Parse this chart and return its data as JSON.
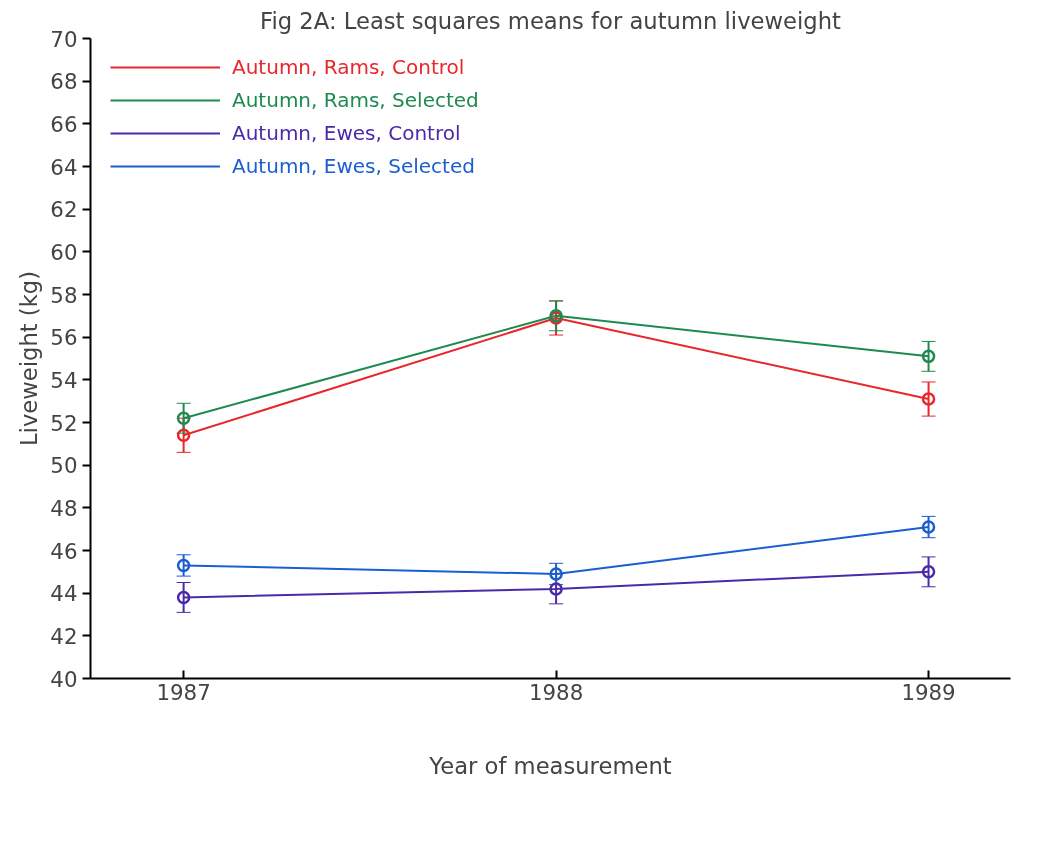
{
  "chart_data": {
    "type": "line",
    "title": "Fig 2A: Least squares means for autumn liveweight",
    "xlabel": "Year of measurement",
    "ylabel": "Liveweight (kg)",
    "x": [
      1987,
      1988,
      1989
    ],
    "series": [
      {
        "name": "Autumn, Rams, Control",
        "color": "#e8262b",
        "values": [
          51.4,
          56.9,
          53.1
        ],
        "errors": [
          0.8,
          0.8,
          0.8
        ]
      },
      {
        "name": "Autumn, Rams, Selected",
        "color": "#1e8a50",
        "values": [
          52.2,
          57.0,
          55.1
        ],
        "errors": [
          0.7,
          0.7,
          0.7
        ]
      },
      {
        "name": "Autumn, Ewes, Control",
        "color": "#4a2aa8",
        "values": [
          43.8,
          44.2,
          45.0
        ],
        "errors": [
          0.7,
          0.7,
          0.7
        ]
      },
      {
        "name": "Autumn, Ewes, Selected",
        "color": "#1a5fd0",
        "values": [
          45.3,
          44.9,
          47.1
        ],
        "errors": [
          0.5,
          0.5,
          0.5
        ]
      }
    ],
    "xlim": [
      1986.75,
      1989.22
    ],
    "xticks": [
      1987,
      1988,
      1989
    ],
    "ylim": [
      40,
      70
    ],
    "yticks": [
      40,
      42,
      44,
      46,
      48,
      50,
      52,
      54,
      56,
      58,
      60,
      62,
      64,
      66,
      68,
      70
    ],
    "grid": false,
    "legend": "top left",
    "marker": "circle",
    "line_style": "solid"
  }
}
